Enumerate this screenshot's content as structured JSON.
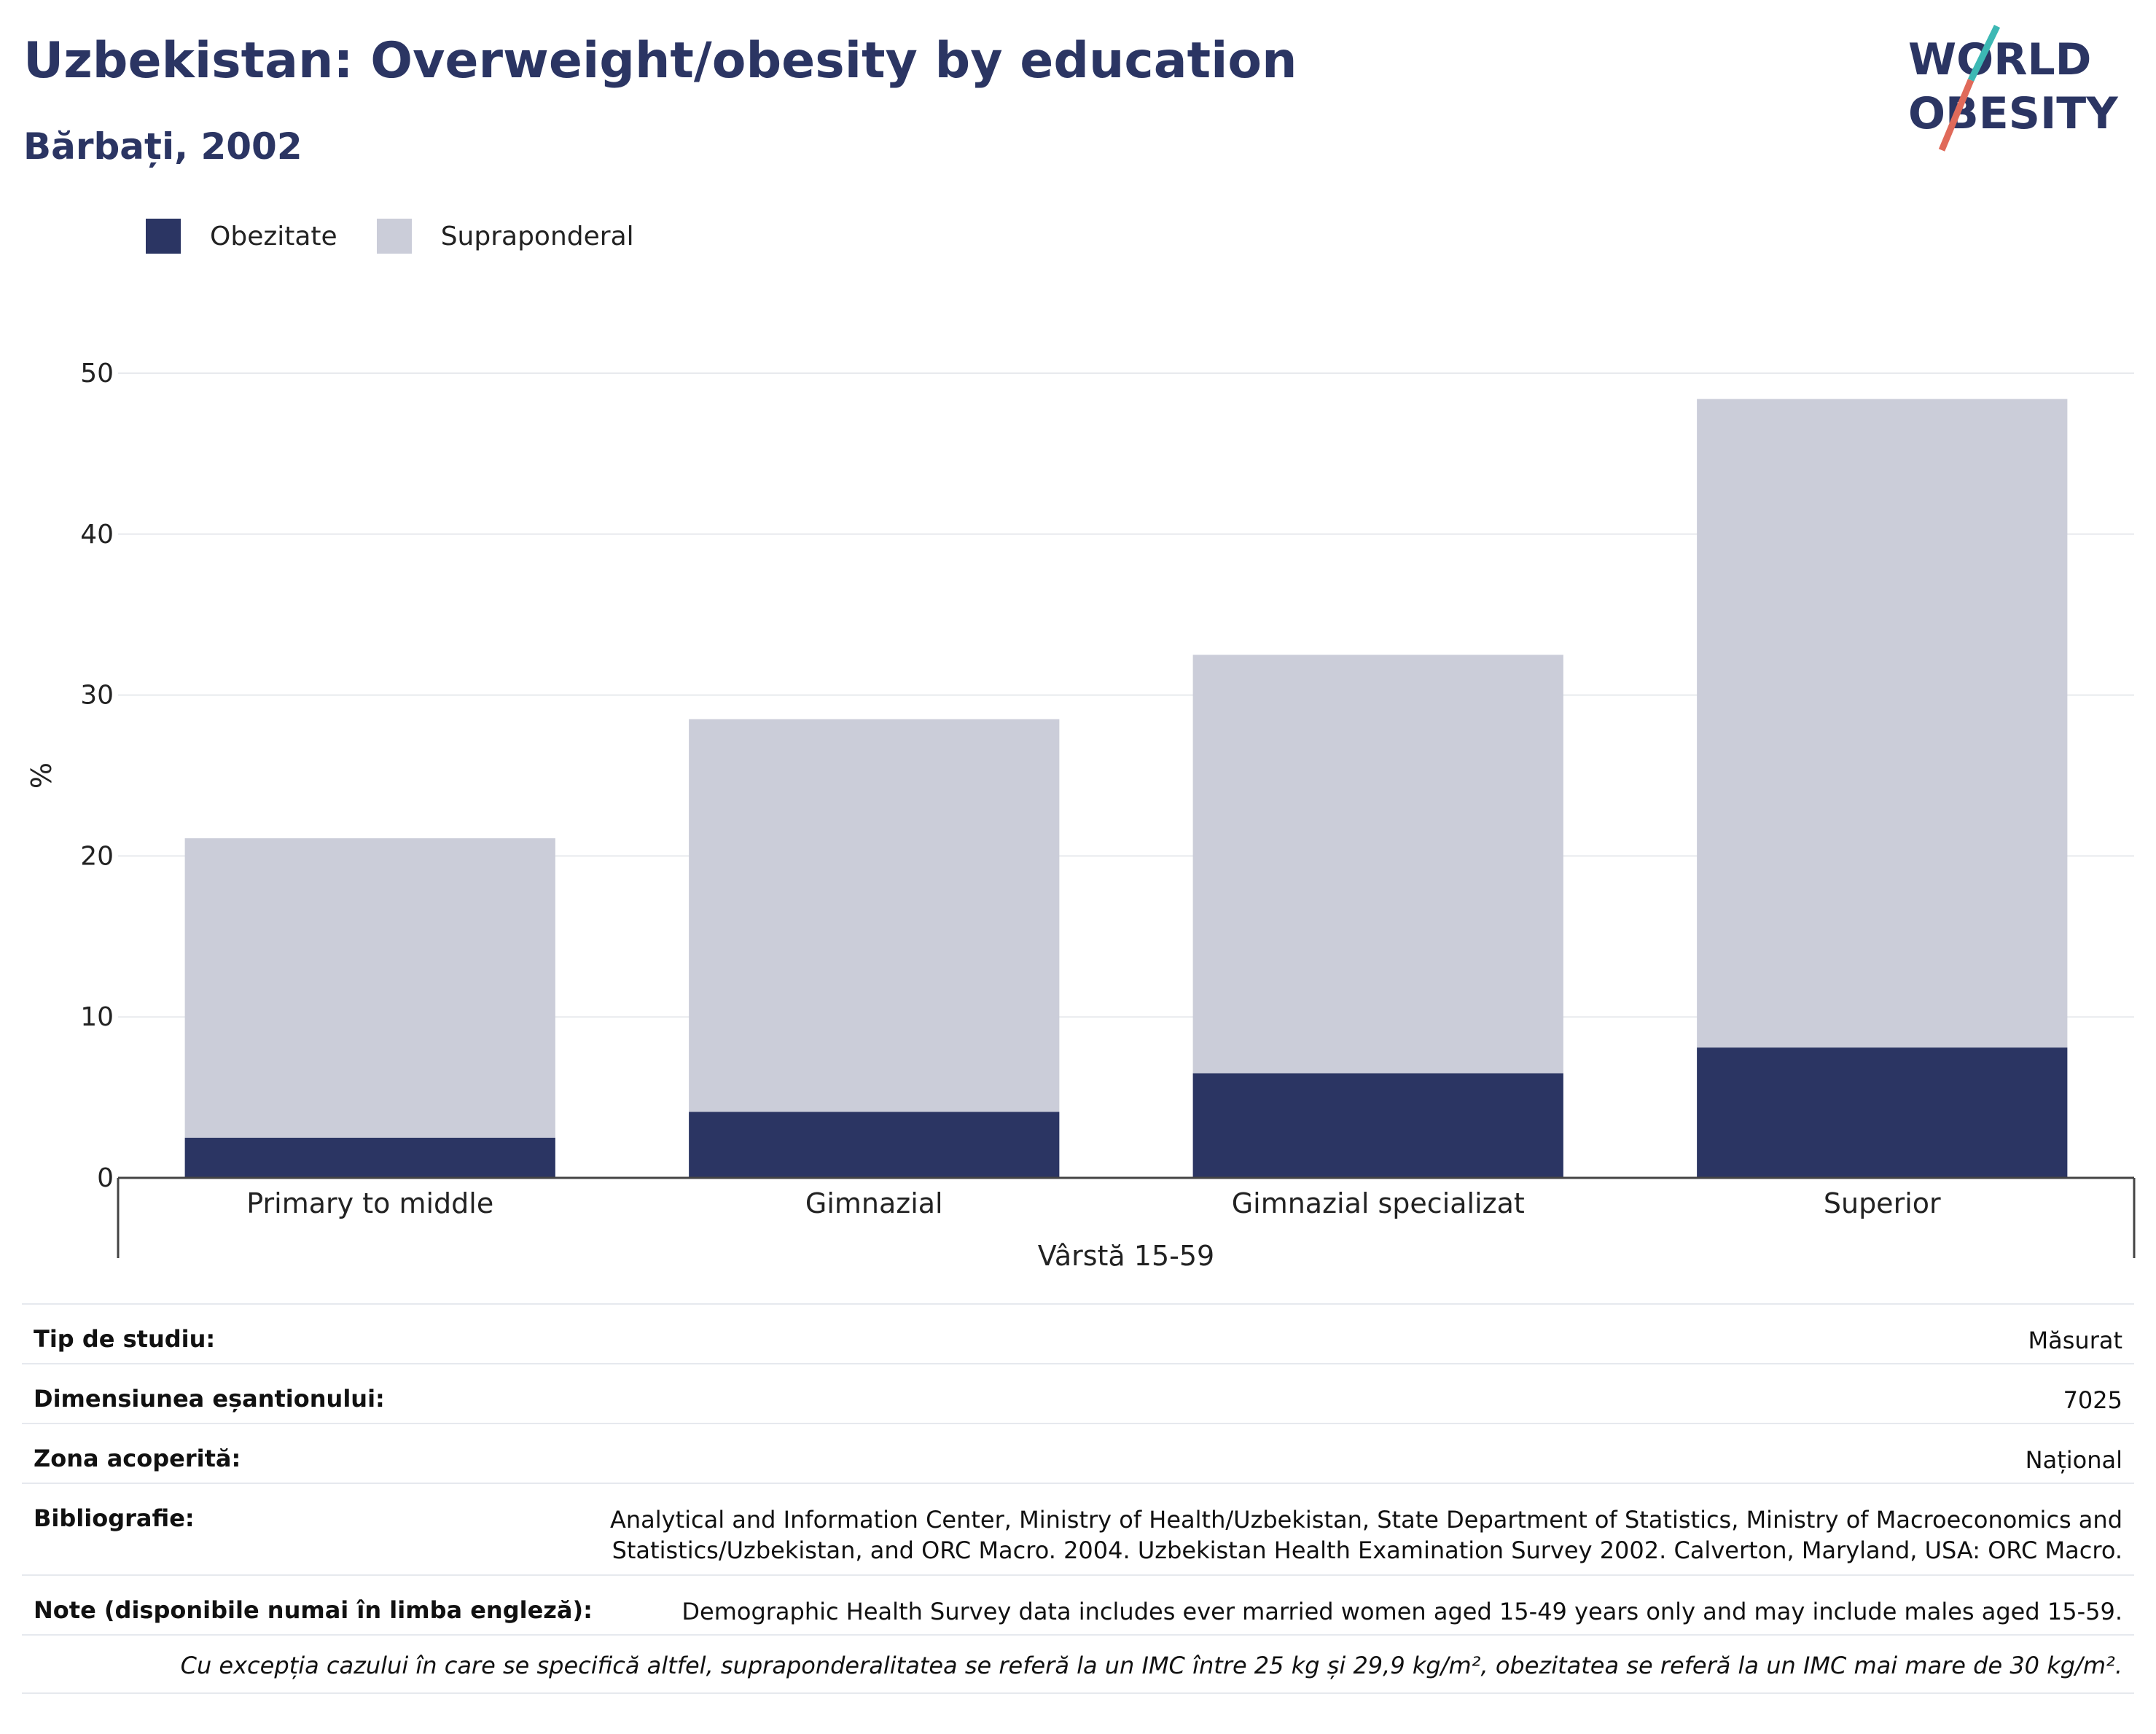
{
  "header": {
    "title": "Uzbekistan: Overweight/obesity by education",
    "subtitle": "Bărbați, 2002"
  },
  "logo": {
    "line1": "WORLD",
    "line2": "OBESITY"
  },
  "legend": [
    {
      "label": "Obezitate",
      "color": "#2b3563"
    },
    {
      "label": "Supraponderal",
      "color": "#cbcdd9"
    }
  ],
  "chart_data": {
    "type": "bar",
    "stacked": true,
    "categories": [
      "Primary to middle",
      "Gimnazial",
      "Gimnazial specializat",
      "Superior"
    ],
    "series": [
      {
        "name": "Obezitate",
        "values": [
          2.5,
          4.1,
          6.5,
          8.1
        ],
        "color": "#2b3563"
      },
      {
        "name": "Supraponderal",
        "values": [
          18.6,
          24.4,
          26.0,
          40.3
        ],
        "color": "#cbcdd9"
      }
    ],
    "xlabel": "Vârstă 15-59",
    "ylabel": "%",
    "ylim": [
      0,
      50
    ],
    "yticks": [
      0,
      10,
      20,
      30,
      40,
      50
    ],
    "grid": true,
    "legend_position": "top-left"
  },
  "info": {
    "rows": [
      {
        "key": "Tip de studiu:",
        "value": "Măsurat"
      },
      {
        "key": "Dimensiunea eșantionului:",
        "value": "7025"
      },
      {
        "key": "Zona acoperită:",
        "value": "Național"
      },
      {
        "key": "Bibliografie:",
        "value_lines": [
          "Analytical and Information Center, Ministry of Health/Uzbekistan, State Department of Statistics, Ministry of Macroeconomics and",
          "Statistics/Uzbekistan, and ORC Macro. 2004. Uzbekistan Health Examination Survey 2002. Calverton, Maryland, USA: ORC Macro."
        ]
      },
      {
        "key": "Note (disponibile numai în limba engleză):",
        "value": "Demographic Health Survey data includes ever married women aged 15-49 years only and may include males aged 15-59."
      }
    ],
    "footnote": "Cu excepția cazului în care se specifică altfel, supraponderalitatea se referă la un IMC între 25 kg și 29,9 kg/m², obezitatea se referă la un IMC mai mare de 30 kg/m²."
  }
}
